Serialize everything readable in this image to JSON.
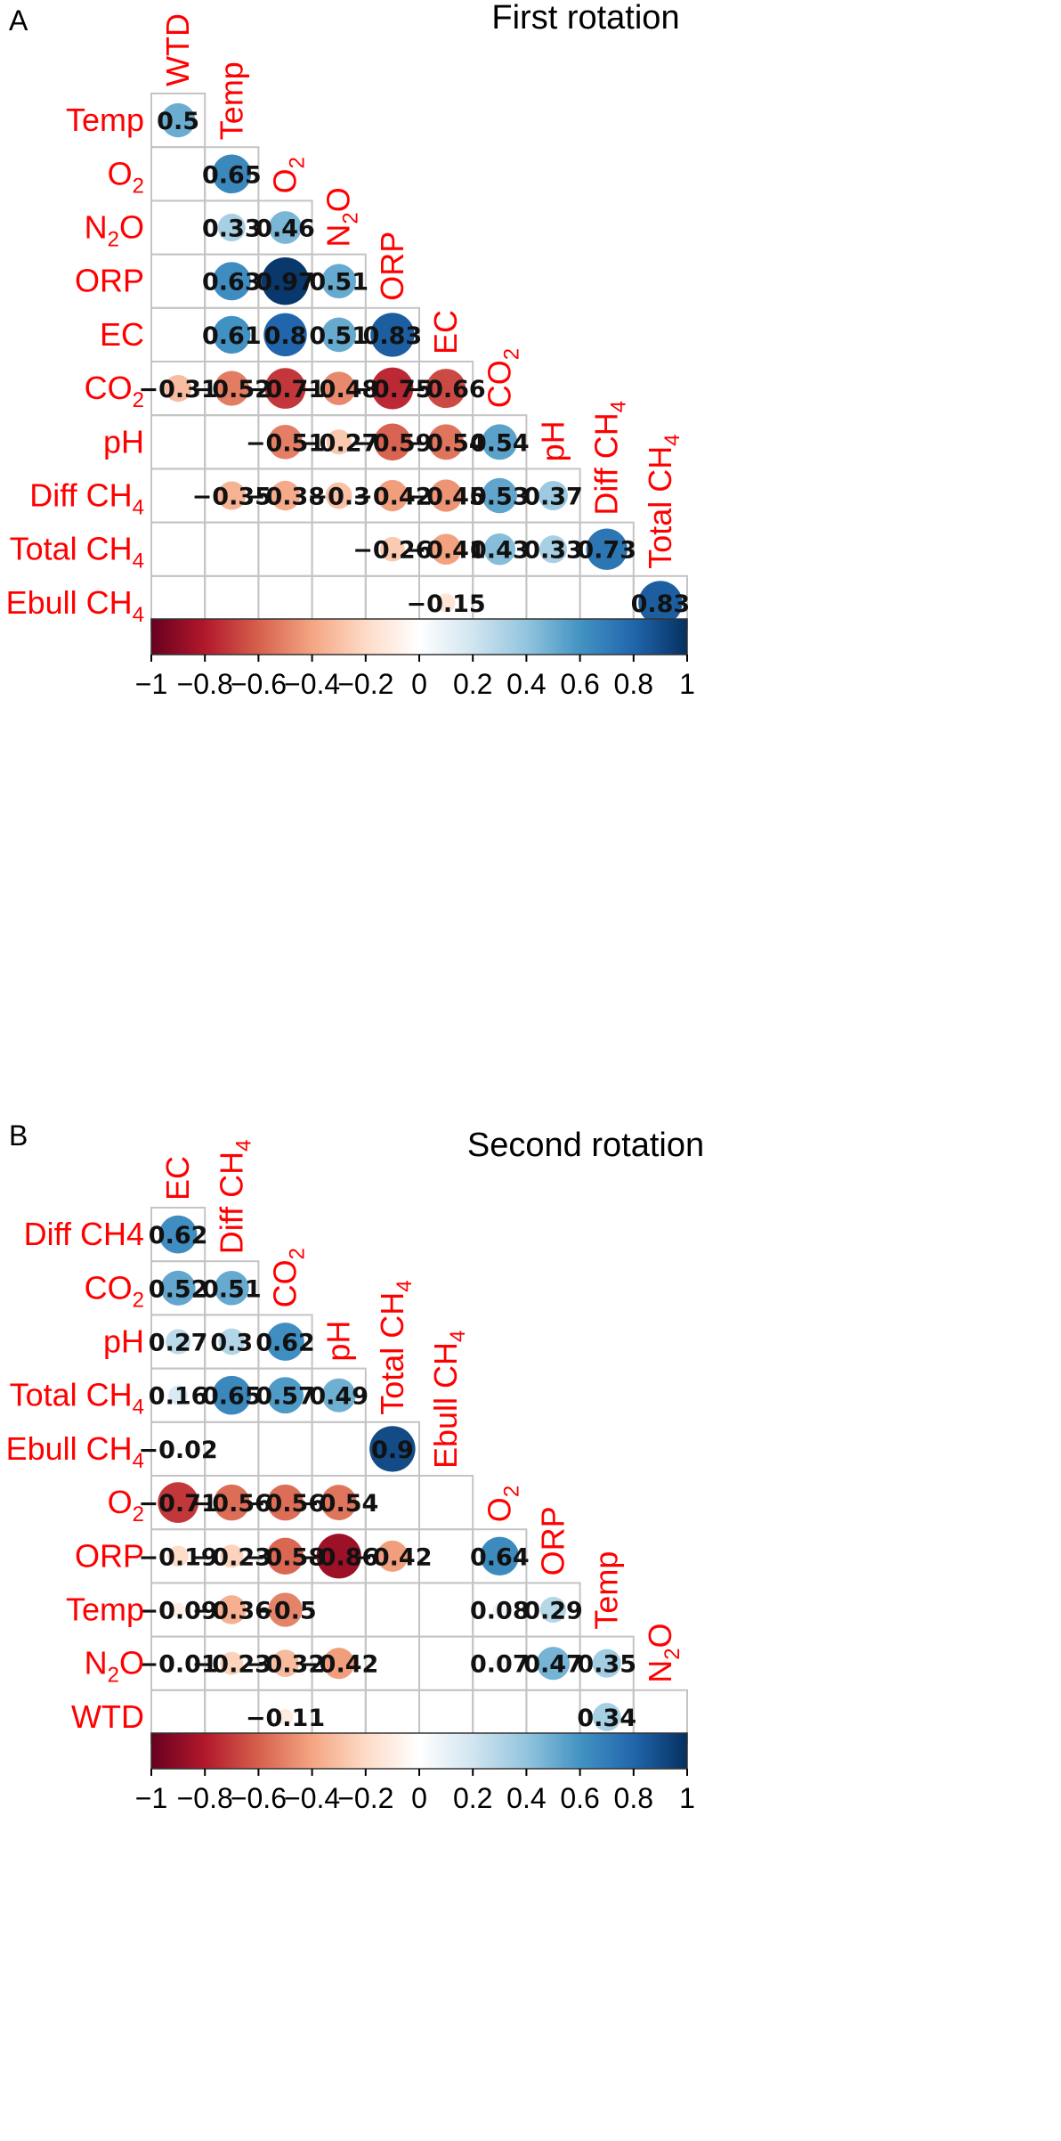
{
  "chart_data": [
    {
      "type": "heatmap",
      "panel": "A",
      "title": "First rotation",
      "columns": [
        "WTD",
        "Temp",
        "O2",
        "N2O",
        "ORP",
        "EC",
        "CO2",
        "pH",
        "Diff CH4",
        "Total CH4"
      ],
      "rows": [
        "Temp",
        "O2",
        "N2O",
        "ORP",
        "EC",
        "CO2",
        "pH",
        "Diff CH4",
        "Total CH4",
        "Ebull CH4"
      ],
      "values": [
        [
          0.5,
          null,
          null,
          null,
          null,
          null,
          null,
          null,
          null,
          null
        ],
        [
          null,
          0.65,
          null,
          null,
          null,
          null,
          null,
          null,
          null,
          null
        ],
        [
          null,
          0.33,
          0.46,
          null,
          null,
          null,
          null,
          null,
          null,
          null
        ],
        [
          null,
          0.63,
          0.97,
          0.51,
          null,
          null,
          null,
          null,
          null,
          null
        ],
        [
          null,
          0.61,
          0.8,
          0.51,
          0.83,
          null,
          null,
          null,
          null,
          null
        ],
        [
          -0.31,
          -0.52,
          -0.71,
          -0.48,
          -0.75,
          -0.66,
          null,
          null,
          null,
          null
        ],
        [
          null,
          null,
          -0.51,
          -0.27,
          -0.59,
          -0.54,
          0.54,
          null,
          null,
          null
        ],
        [
          null,
          -0.35,
          -0.38,
          -0.3,
          -0.42,
          -0.45,
          0.53,
          0.37,
          null,
          null
        ],
        [
          null,
          null,
          null,
          null,
          -0.26,
          -0.41,
          0.43,
          0.33,
          0.73,
          null
        ],
        [
          null,
          null,
          null,
          null,
          null,
          -0.15,
          null,
          null,
          null,
          0.83
        ]
      ],
      "colorbar": {
        "range": [
          -1,
          1
        ],
        "ticks": [
          "−1",
          "−0.8",
          "−0.6",
          "−0.4",
          "−0.2",
          "0",
          "0.2",
          "0.4",
          "0.6",
          "0.8",
          "1"
        ]
      }
    },
    {
      "type": "heatmap",
      "panel": "B",
      "title": "Second rotation",
      "columns": [
        "EC",
        "Diff CH4",
        "CO2",
        "pH",
        "Total CH4",
        "Ebull CH4",
        "O2",
        "ORP",
        "Temp",
        "N2O"
      ],
      "rows": [
        "Diff CH4",
        "CO2",
        "pH",
        "Total CH4",
        "Ebull CH4",
        "O2",
        "ORP",
        "Temp",
        "N2O",
        "WTD"
      ],
      "values": [
        [
          0.62,
          null,
          null,
          null,
          null,
          null,
          null,
          null,
          null,
          null
        ],
        [
          0.52,
          0.51,
          null,
          null,
          null,
          null,
          null,
          null,
          null,
          null
        ],
        [
          0.27,
          0.3,
          0.62,
          null,
          null,
          null,
          null,
          null,
          null,
          null
        ],
        [
          0.16,
          0.65,
          0.57,
          0.49,
          null,
          null,
          null,
          null,
          null,
          null
        ],
        [
          -0.02,
          null,
          null,
          null,
          0.9,
          null,
          null,
          null,
          null,
          null
        ],
        [
          -0.71,
          -0.56,
          -0.56,
          -0.54,
          null,
          null,
          null,
          null,
          null,
          null
        ],
        [
          -0.19,
          -0.23,
          -0.58,
          -0.86,
          -0.42,
          null,
          0.64,
          null,
          null,
          null
        ],
        [
          -0.09,
          -0.36,
          -0.5,
          null,
          null,
          null,
          0.08,
          0.29,
          null,
          null
        ],
        [
          -0.01,
          -0.23,
          -0.32,
          -0.42,
          null,
          null,
          0.07,
          0.47,
          0.35,
          null
        ],
        [
          null,
          null,
          -0.11,
          null,
          null,
          null,
          null,
          null,
          0.34,
          null
        ]
      ],
      "colorbar": {
        "range": [
          -1,
          1
        ],
        "ticks": [
          "−1",
          "−0.8",
          "−0.6",
          "−0.4",
          "−0.2",
          "0",
          "0.2",
          "0.4",
          "0.6",
          "0.8",
          "1"
        ]
      }
    }
  ],
  "labels": {
    "panel_a": {
      "columns": [
        "WTD",
        "Temp",
        "O₂",
        "N₂O",
        "ORP",
        "EC",
        "CO₂",
        "pH",
        "Diff CH₄",
        "Total CH₄"
      ],
      "rows": [
        "Temp",
        "O₂",
        "N₂O",
        "ORP",
        "EC",
        "CO₂",
        "pH",
        "Diff CH₄",
        "Total CH₄",
        "Ebull CH₄"
      ]
    },
    "panel_b": {
      "columns": [
        "EC",
        "Diff CH₄",
        "CO₂",
        "pH",
        "Total CH₄",
        "Ebull CH₄",
        "O₂",
        "ORP",
        "Temp",
        "N₂O"
      ],
      "rows": [
        "Diff CH4",
        "CO₂",
        "pH",
        "Total CH₄",
        "Ebull CH₄",
        "O₂",
        "ORP",
        "Temp",
        "N₂O",
        "WTD"
      ]
    }
  },
  "colors": {
    "label": "#ff0000",
    "grid": "#c4c4c4",
    "scale": [
      "#67001f",
      "#b2182b",
      "#d6604d",
      "#f4a582",
      "#fddbc7",
      "#ffffff",
      "#d1e5f0",
      "#92c5de",
      "#4393c3",
      "#2166ac",
      "#053061"
    ]
  }
}
